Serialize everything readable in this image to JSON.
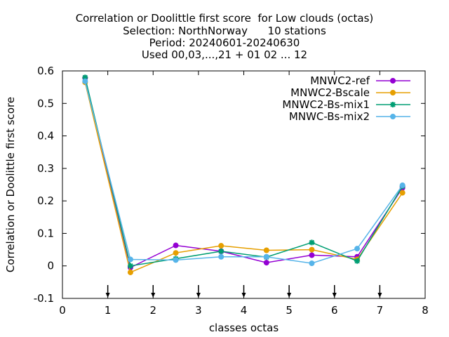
{
  "chart_data": {
    "type": "line",
    "title_lines": [
      "Correlation or Doolittle first score  for Low clouds (octas)",
      "Selection: NorthNorway      10 stations",
      "Period: 20240601-20240630",
      "Used 00,03,...,21 + 01 02 ... 12"
    ],
    "xlabel": "classes octas",
    "ylabel": "Correlation or Doolittle first score",
    "xlim": [
      0,
      8
    ],
    "ylim": [
      -0.1,
      0.6
    ],
    "xticks": [
      0,
      1,
      2,
      3,
      4,
      5,
      6,
      7,
      8
    ],
    "xtick_labels": [
      "0",
      "1",
      "2",
      "3",
      "4",
      "5",
      "6",
      "7",
      "8"
    ],
    "yticks": [
      -0.1,
      0,
      0.1,
      0.2,
      0.3,
      0.4,
      0.5,
      0.6
    ],
    "ytick_labels": [
      "-0.1",
      "0",
      "0.1",
      "0.2",
      "0.3",
      "0.4",
      "0.5",
      "0.6"
    ],
    "class_boundaries": [
      1,
      2,
      3,
      4,
      5,
      6,
      7
    ],
    "grid": false,
    "legend_position": "top-right",
    "x": [
      0.5,
      1.5,
      2.5,
      3.5,
      4.5,
      5.5,
      6.5,
      7.5
    ],
    "series": [
      {
        "name": "MNWC2-ref",
        "color": "#9400d3",
        "values": [
          0.578,
          -0.005,
          0.063,
          0.045,
          0.01,
          0.033,
          0.028,
          0.24
        ]
      },
      {
        "name": "MNWC2-Bscale",
        "color": "#e69f00",
        "values": [
          0.565,
          -0.02,
          0.04,
          0.062,
          0.048,
          0.05,
          0.02,
          0.225
        ]
      },
      {
        "name": "MNWC2-Bs-mix1",
        "color": "#009e73",
        "values": [
          0.58,
          0.0,
          0.022,
          0.045,
          0.027,
          0.072,
          0.015,
          0.245
        ]
      },
      {
        "name": "MNWC-Bs-mix2",
        "color": "#56b4e9",
        "values": [
          0.568,
          0.02,
          0.018,
          0.028,
          0.028,
          0.008,
          0.053,
          0.248
        ]
      }
    ]
  }
}
